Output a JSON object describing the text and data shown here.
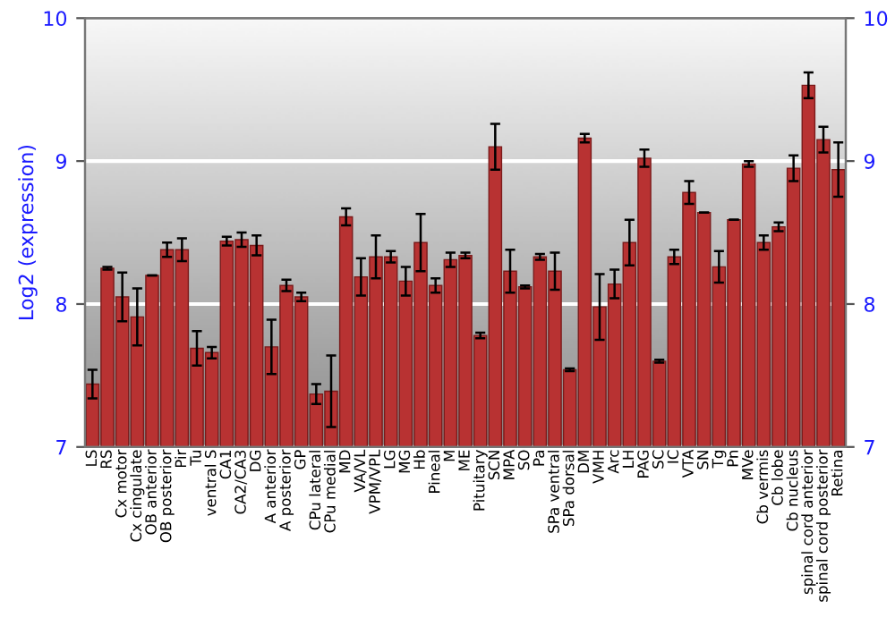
{
  "chart_data": {
    "type": "bar",
    "ylabel": "Log2 (expression)",
    "categories": [
      "LS",
      "RS",
      "Cx motor",
      "Cx cingulate",
      "OB anterior",
      "OB posterior",
      "Pir",
      "Tu",
      "ventral S",
      "CA1",
      "CA2/CA3",
      "DG",
      "A anterior",
      "A posterior",
      "GP",
      "CPu lateral",
      "CPu medial",
      "MD",
      "VA/VL",
      "VPM/VPL",
      "LG",
      "MG",
      "Hb",
      "Pineal",
      "M",
      "ME",
      "Pituitary",
      "SCN",
      "MPA",
      "SO",
      "Pa",
      "SPa ventral",
      "SPa dorsal",
      "DM",
      "VMH",
      "Arc",
      "LH",
      "PAG",
      "SC",
      "IC",
      "VTA",
      "SN",
      "Tg",
      "Pn",
      "MVe",
      "Cb vermis",
      "Cb lobe",
      "Cb nucleus",
      "spinal cord anterior",
      "spinal cord posterior",
      "Retina"
    ],
    "series": [
      {
        "color": "#b83232",
        "values": [
          7.44,
          8.25,
          8.05,
          7.91,
          8.2,
          8.38,
          8.38,
          7.69,
          7.66,
          8.44,
          8.45,
          8.41,
          7.7,
          8.13,
          8.05,
          7.37,
          7.39,
          8.61,
          8.19,
          8.33,
          8.33,
          8.16,
          8.43,
          8.13,
          8.31,
          8.34,
          7.78,
          9.1,
          8.23,
          8.12,
          8.33,
          8.23,
          7.54,
          9.16,
          7.98,
          8.14,
          8.43,
          9.02,
          7.6,
          8.33,
          8.78,
          8.64,
          8.26,
          8.59,
          8.98,
          8.43,
          8.54,
          8.95,
          9.53,
          9.15,
          8.94
        ],
        "errors": [
          0.1,
          0.01,
          0.17,
          0.2,
          null,
          0.05,
          0.08,
          0.12,
          0.04,
          0.03,
          0.05,
          0.07,
          0.19,
          0.04,
          0.03,
          0.07,
          0.25,
          0.06,
          0.13,
          0.15,
          0.04,
          0.1,
          0.2,
          0.05,
          0.05,
          0.02,
          0.02,
          0.16,
          0.15,
          0.01,
          0.02,
          0.13,
          0.01,
          0.03,
          0.23,
          0.1,
          0.16,
          0.06,
          0.01,
          0.05,
          0.08,
          null,
          0.11,
          null,
          0.02,
          0.05,
          0.03,
          0.09,
          0.09,
          0.09,
          0.19
        ]
      }
    ],
    "ylim": [
      7,
      10
    ],
    "yticks": [
      7,
      8,
      9,
      10
    ],
    "y2lim": [
      7,
      10
    ],
    "y2ticks": [
      7,
      8,
      9,
      10
    ],
    "grid": "y"
  }
}
